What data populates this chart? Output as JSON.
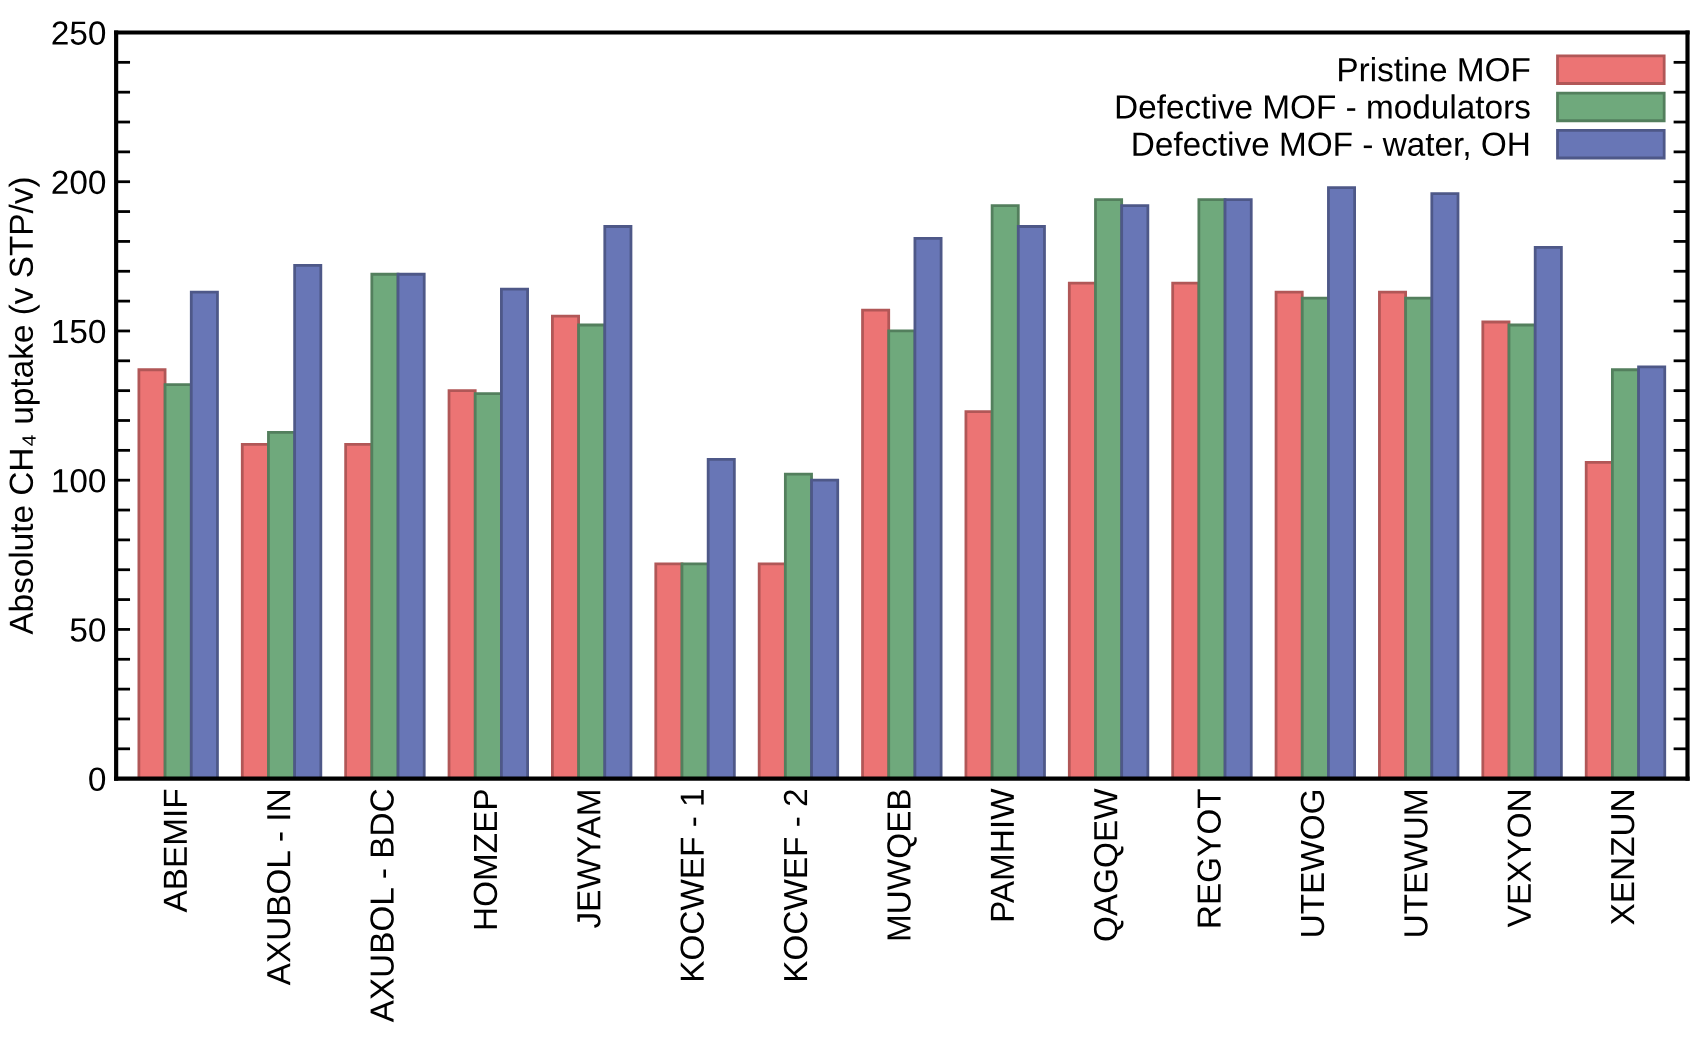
{
  "chart_data": {
    "type": "bar",
    "ylabel": "Absolute CH₄ uptake (v STP/v)",
    "categories": [
      "ABEMIF",
      "AXUBOL - IN",
      "AXUBOL - BDC",
      "HOMZEP",
      "JEWYAM",
      "KOCWEF - 1",
      "KOCWEF - 2",
      "MUWQEB",
      "PAMHIW",
      "QAGQEW",
      "REGYOT",
      "UTEWOG",
      "UTEWUM",
      "VEXYON",
      "XENZUN"
    ],
    "series": [
      {
        "name": "Pristine MOF",
        "color": "#ec7474",
        "values": [
          137,
          112,
          112,
          130,
          155,
          72,
          72,
          157,
          123,
          166,
          166,
          163,
          163,
          153,
          106
        ]
      },
      {
        "name": "Defective MOF - modulators",
        "color": "#6fa97c",
        "values": [
          132,
          116,
          169,
          129,
          152,
          72,
          102,
          150,
          192,
          194,
          194,
          161,
          161,
          152,
          137
        ]
      },
      {
        "name": "Defective MOF - water, OH",
        "color": "#6876b6",
        "values": [
          163,
          172,
          169,
          164,
          185,
          107,
          100,
          181,
          185,
          192,
          194,
          198,
          196,
          178,
          138
        ]
      }
    ],
    "ylim": [
      0,
      250
    ],
    "yticks": [
      0,
      {
        "value": 10,
        "label": null
      },
      {
        "value": 20,
        "label": null
      },
      {
        "value": 30,
        "label": null
      },
      {
        "value": 40,
        "label": null
      },
      50,
      {
        "value": 60,
        "label": null
      },
      {
        "value": 70,
        "label": null
      },
      {
        "value": 80,
        "label": null
      },
      {
        "value": 90,
        "label": null
      },
      100,
      {
        "value": 110,
        "label": null
      },
      {
        "value": 120,
        "label": null
      },
      {
        "value": 130,
        "label": null
      },
      {
        "value": 140,
        "label": null
      },
      150,
      {
        "value": 160,
        "label": null
      },
      {
        "value": 170,
        "label": null
      },
      {
        "value": 180,
        "label": null
      },
      {
        "value": 190,
        "label": null
      },
      200,
      {
        "value": 210,
        "label": null
      },
      {
        "value": 220,
        "label": null
      },
      {
        "value": 230,
        "label": null
      },
      {
        "value": 240,
        "label": null
      },
      250
    ],
    "legend": "top right",
    "grid": false
  }
}
